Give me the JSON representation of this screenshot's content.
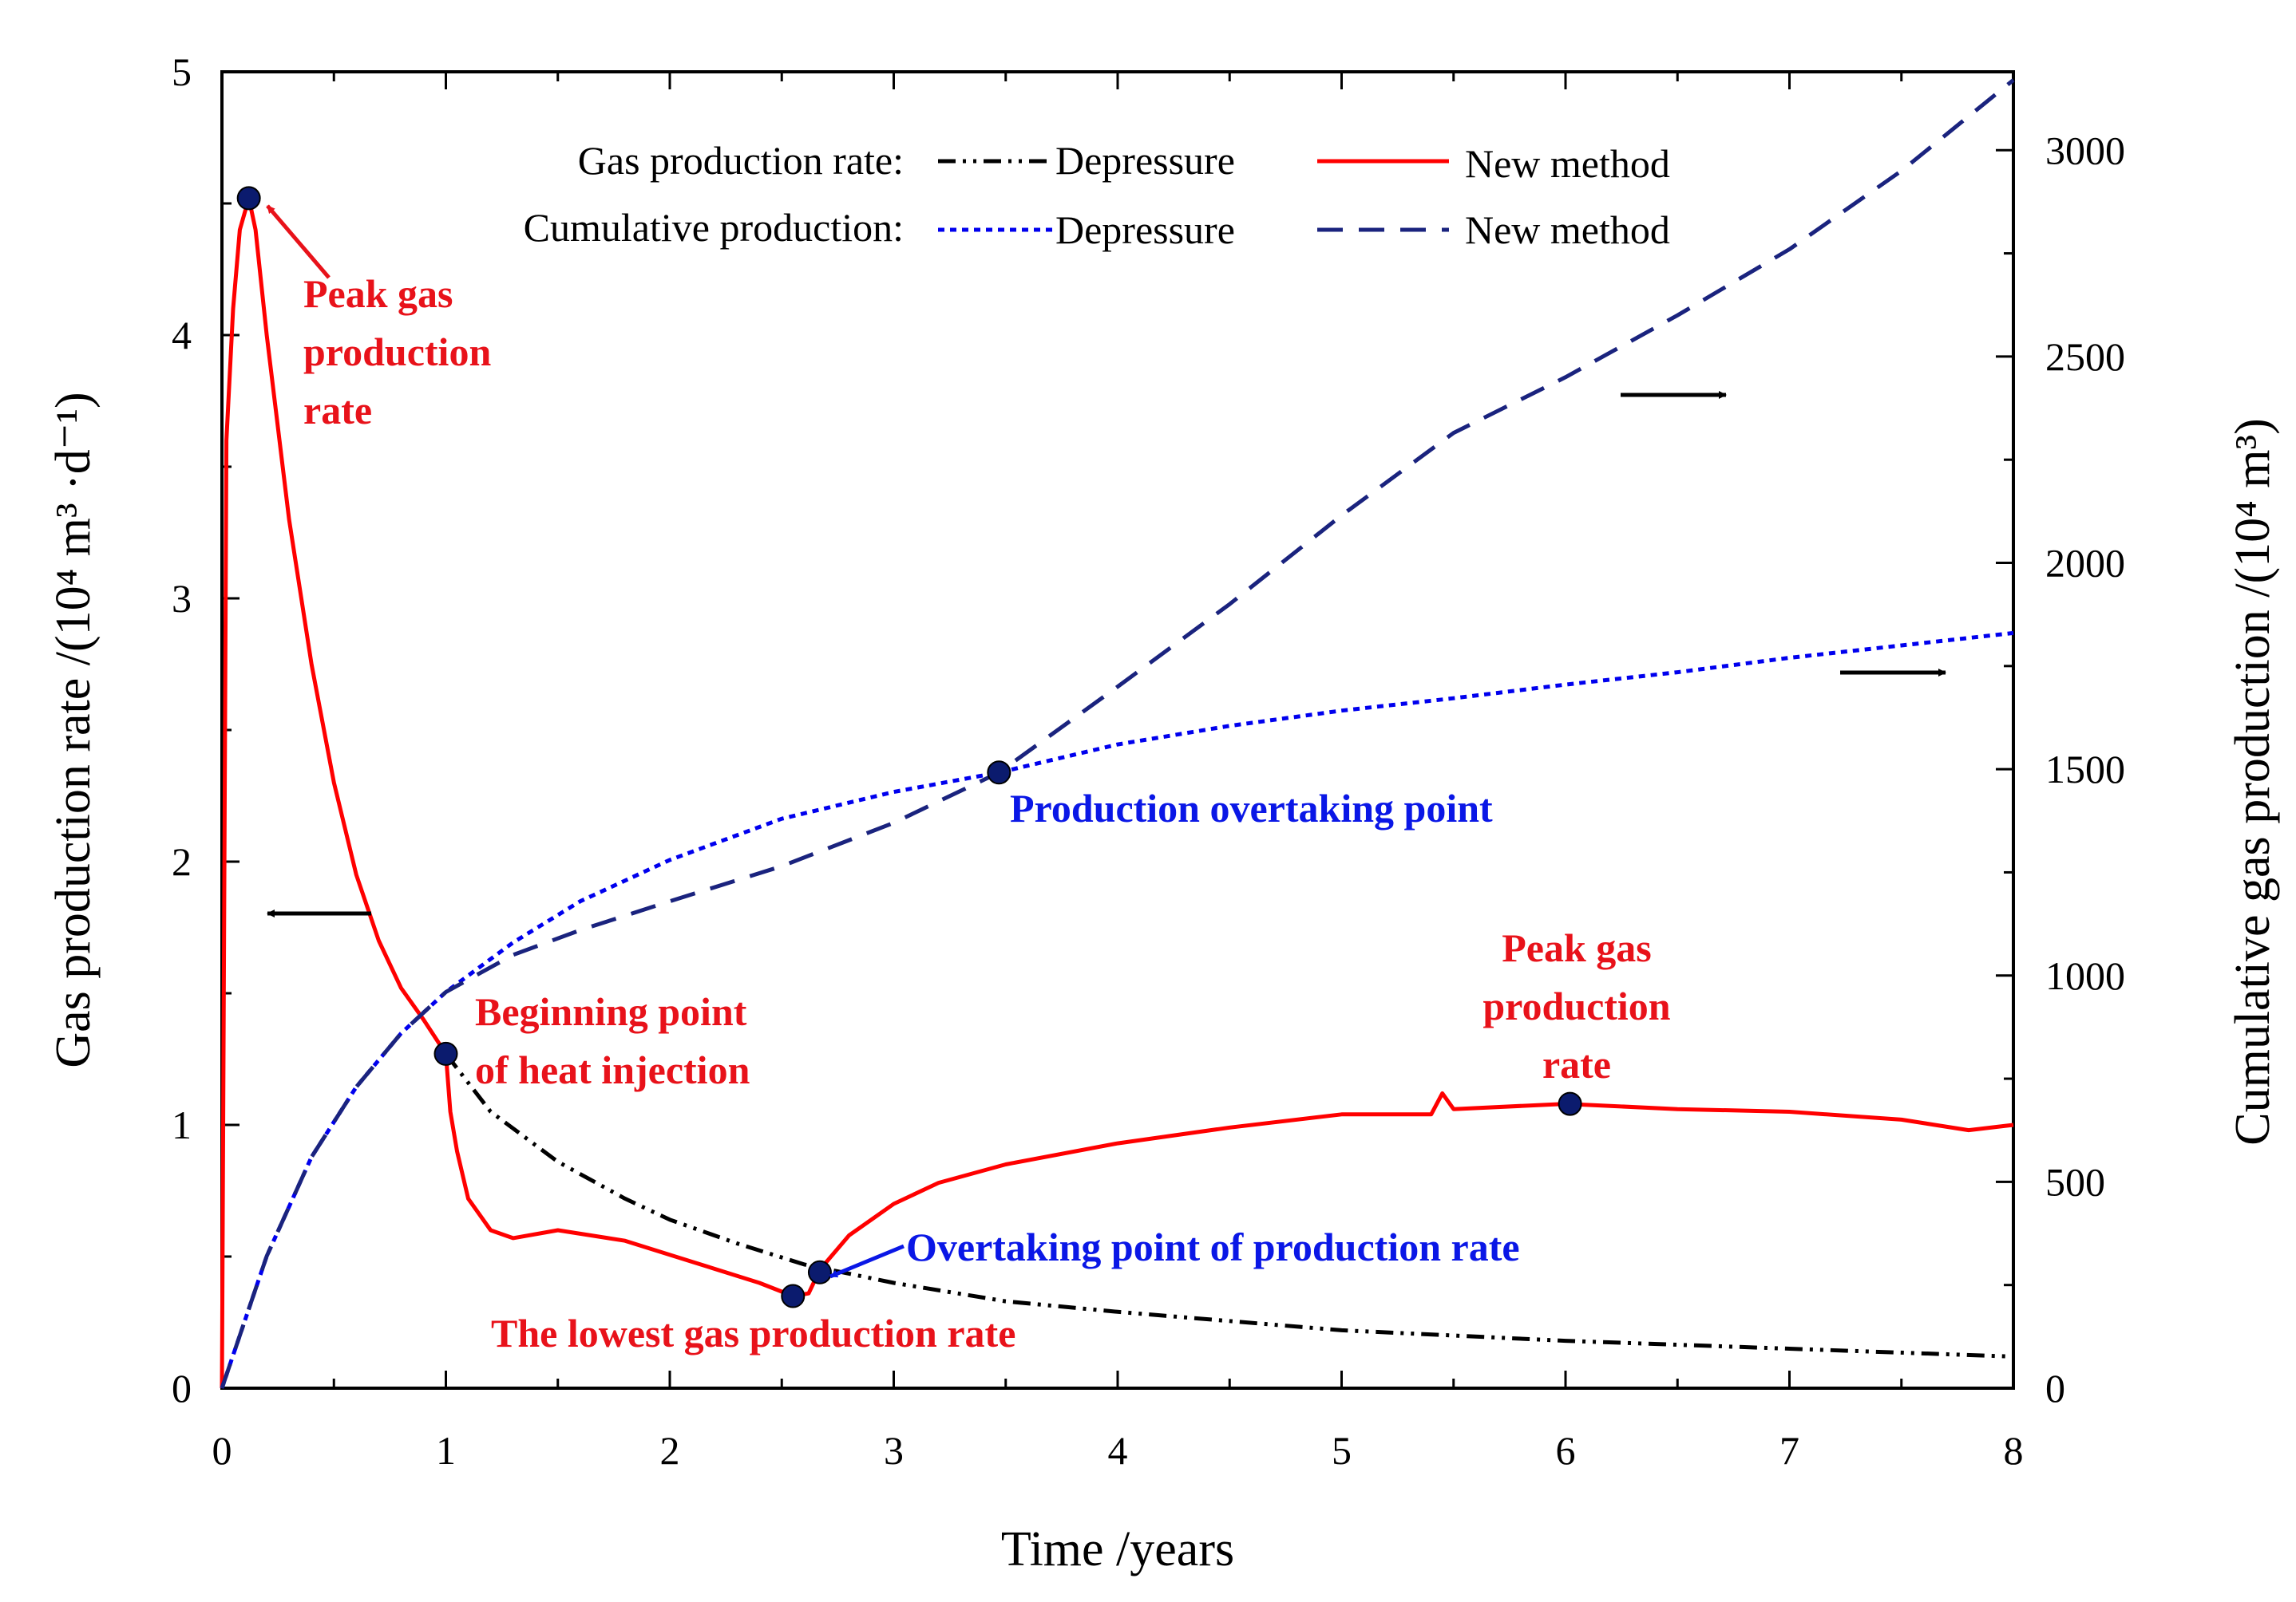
{
  "chart_data": {
    "type": "line",
    "xlabel": "Time /years",
    "ylabel": "Gas production rate /(10⁴ m³ ·d⁻¹)",
    "y2label": "Cumulative gas production /(10⁴ m³)",
    "xlim": [
      0,
      8
    ],
    "ylim": [
      0,
      5
    ],
    "y2lim": [
      0,
      3190
    ],
    "x_ticks": [
      "0",
      "1",
      "2",
      "3",
      "4",
      "5",
      "6",
      "7",
      "8"
    ],
    "y_ticks": [
      "0",
      "1",
      "2",
      "3",
      "4",
      "5"
    ],
    "y2_ticks": [
      "0",
      "500",
      "1000",
      "1500",
      "2000",
      "2500",
      "3000"
    ],
    "legend": {
      "rate_label": "Gas production rate:",
      "cumulative_label": "Cumulative production:",
      "depressure": "Depressure",
      "new_method": "New method"
    },
    "series": [
      {
        "name": "Gas production rate - Depressure",
        "axis": "left",
        "color": "#000000",
        "style": "dashdotdot",
        "x": [
          1.0,
          1.2,
          1.5,
          1.8,
          2.0,
          2.3,
          2.6,
          3.0,
          3.5,
          4.0,
          5.0,
          6.0,
          7.0,
          8.0
        ],
        "y": [
          1.27,
          1.05,
          0.86,
          0.72,
          0.64,
          0.55,
          0.47,
          0.4,
          0.33,
          0.29,
          0.22,
          0.18,
          0.15,
          0.12
        ]
      },
      {
        "name": "Gas production rate - New method",
        "axis": "left",
        "color": "#ff0000",
        "style": "solid",
        "x": [
          0,
          0.02,
          0.05,
          0.08,
          0.12,
          0.15,
          0.2,
          0.3,
          0.4,
          0.5,
          0.6,
          0.7,
          0.8,
          0.9,
          1.0,
          1.02,
          1.05,
          1.1,
          1.2,
          1.3,
          1.5,
          1.8,
          2.1,
          2.4,
          2.55,
          2.62,
          2.67,
          2.8,
          3.0,
          3.2,
          3.5,
          4.0,
          4.5,
          5.0,
          5.4,
          5.45,
          5.5,
          6.0,
          6.5,
          7.0,
          7.5,
          7.8,
          8.0
        ],
        "y": [
          0,
          3.6,
          4.1,
          4.4,
          4.52,
          4.4,
          4.0,
          3.3,
          2.75,
          2.3,
          1.95,
          1.7,
          1.52,
          1.4,
          1.27,
          1.05,
          0.9,
          0.72,
          0.6,
          0.57,
          0.6,
          0.56,
          0.48,
          0.4,
          0.35,
          0.36,
          0.45,
          0.58,
          0.7,
          0.78,
          0.85,
          0.93,
          0.99,
          1.04,
          1.04,
          1.12,
          1.06,
          1.08,
          1.06,
          1.05,
          1.02,
          0.98,
          1.0
        ]
      },
      {
        "name": "Cumulative production - Depressure",
        "axis": "right",
        "color": "#0000ee",
        "style": "dotted",
        "x": [
          0,
          0.2,
          0.4,
          0.6,
          0.8,
          1.0,
          1.3,
          1.6,
          2.0,
          2.5,
          3.0,
          3.47,
          4.0,
          4.5,
          5.0,
          5.5,
          6.0,
          6.5,
          7.0,
          7.5,
          8.0
        ],
        "y": [
          0,
          320,
          560,
          730,
          860,
          960,
          1080,
          1180,
          1280,
          1380,
          1445,
          1492,
          1560,
          1605,
          1642,
          1672,
          1705,
          1735,
          1770,
          1800,
          1830
        ]
      },
      {
        "name": "Cumulative production - New method",
        "axis": "right",
        "color": "#1a237e",
        "style": "dashed",
        "x": [
          0,
          0.2,
          0.4,
          0.6,
          0.8,
          1.0,
          1.3,
          1.6,
          2.0,
          2.5,
          3.0,
          3.47,
          4.0,
          4.5,
          5.0,
          5.5,
          6.0,
          6.5,
          7.0,
          7.5,
          8.0
        ],
        "y": [
          0,
          320,
          560,
          730,
          860,
          960,
          1050,
          1110,
          1180,
          1265,
          1370,
          1492,
          1700,
          1900,
          2115,
          2315,
          2450,
          2600,
          2760,
          2950,
          3170
        ]
      }
    ],
    "markers": [
      {
        "x": 0.12,
        "y": 4.52,
        "axis": "left"
      },
      {
        "x": 1.0,
        "y": 1.27,
        "axis": "left"
      },
      {
        "x": 2.55,
        "y": 0.35,
        "axis": "left"
      },
      {
        "x": 2.67,
        "y": 0.44,
        "axis": "left"
      },
      {
        "x": 6.02,
        "y": 1.08,
        "axis": "left"
      },
      {
        "x": 3.47,
        "y": 1492,
        "axis": "right"
      }
    ],
    "annotations": {
      "peak1": [
        "Peak gas",
        "production",
        "rate"
      ],
      "heat": [
        "Beginning point",
        "of heat injection"
      ],
      "lowest": "The lowest gas production rate",
      "overtake_rate": "Overtaking point of production rate",
      "overtake_prod": "Production overtaking point",
      "peak2": [
        "Peak gas",
        "production",
        "rate"
      ]
    },
    "colors": {
      "annotation_red": "#e8121a",
      "annotation_blue": "#0a17e6",
      "marker": "#0b1b6e"
    }
  }
}
